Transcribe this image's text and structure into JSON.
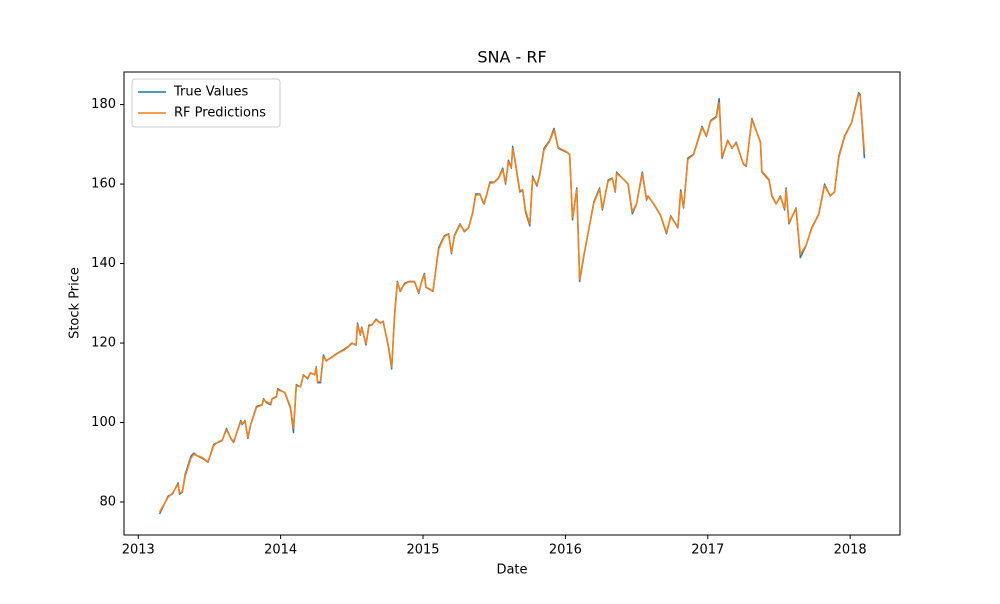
{
  "chart_data": {
    "type": "line",
    "title": "SNA - RF",
    "x_label": "Date",
    "y_label": "Stock Price",
    "x": [
      2013.15,
      2013.21,
      2013.24,
      2013.28,
      2013.29,
      2013.31,
      2013.33,
      2013.37,
      2013.39,
      2013.42,
      2013.45,
      2013.49,
      2013.53,
      2013.56,
      2013.59,
      2013.62,
      2013.65,
      2013.67,
      2013.72,
      2013.73,
      2013.75,
      2013.77,
      2013.79,
      2013.83,
      2013.87,
      2013.88,
      2013.9,
      2013.93,
      2013.94,
      2013.97,
      2013.98,
      2014.03,
      2014.07,
      2014.09,
      2014.11,
      2014.14,
      2014.16,
      2014.19,
      2014.21,
      2014.24,
      2014.25,
      2014.26,
      2014.28,
      2014.3,
      2014.32,
      2014.36,
      2014.4,
      2014.45,
      2014.47,
      2014.5,
      2014.53,
      2014.54,
      2014.56,
      2014.57,
      2014.6,
      2014.62,
      2014.64,
      2014.67,
      2014.7,
      2014.72,
      2014.76,
      2014.78,
      2014.8,
      2014.82,
      2014.84,
      2014.87,
      2014.9,
      2014.94,
      2014.97,
      2014.99,
      2015.01,
      2015.02,
      2015.07,
      2015.11,
      2015.15,
      2015.18,
      2015.2,
      2015.22,
      2015.26,
      2015.29,
      2015.32,
      2015.35,
      2015.37,
      2015.4,
      2015.42,
      2015.43,
      2015.47,
      2015.5,
      2015.53,
      2015.56,
      2015.58,
      2015.6,
      2015.62,
      2015.63,
      2015.65,
      2015.68,
      2015.7,
      2015.72,
      2015.75,
      2015.77,
      2015.8,
      2015.82,
      2015.85,
      2015.89,
      2015.92,
      2015.95,
      2016.01,
      2016.03,
      2016.05,
      2016.08,
      2016.1,
      2016.13,
      2016.2,
      2016.24,
      2016.26,
      2016.3,
      2016.33,
      2016.35,
      2016.36,
      2016.4,
      2016.44,
      2016.47,
      2016.5,
      2016.54,
      2016.57,
      2016.58,
      2016.62,
      2016.67,
      2016.71,
      2016.74,
      2016.79,
      2016.81,
      2016.83,
      2016.86,
      2016.9,
      2016.96,
      2016.99,
      2017.02,
      2017.06,
      2017.08,
      2017.1,
      2017.14,
      2017.17,
      2017.2,
      2017.25,
      2017.27,
      2017.31,
      2017.37,
      2017.38,
      2017.43,
      2017.45,
      2017.48,
      2017.51,
      2017.54,
      2017.55,
      2017.57,
      2017.62,
      2017.65,
      2017.69,
      2017.73,
      2017.78,
      2017.82,
      2017.86,
      2017.89,
      2017.92,
      2017.96,
      2018.01,
      2018.06,
      2018.07,
      2018.1
    ],
    "series": [
      {
        "name": "True Values",
        "color": "#1f77b4",
        "values": [
          77,
          81.5,
          82,
          84.8,
          82,
          82.5,
          87,
          91.5,
          92.3,
          91.5,
          91,
          90,
          94.5,
          95,
          95.5,
          98.5,
          96,
          95,
          100.5,
          99.5,
          100.5,
          96,
          99.5,
          104,
          104.5,
          106,
          105,
          104.5,
          106,
          106.5,
          108.5,
          107.5,
          103.5,
          97.5,
          109.5,
          109,
          112,
          111,
          112.5,
          112,
          114,
          110,
          110,
          117,
          115.5,
          116.5,
          117.5,
          118.5,
          119,
          120,
          119.5,
          125,
          122,
          124,
          119.5,
          124.5,
          124.5,
          126,
          125,
          125.5,
          118.5,
          113.5,
          127,
          135.5,
          133,
          135,
          135.5,
          135.5,
          132.5,
          135.5,
          137.5,
          134,
          133,
          144,
          147,
          147.5,
          142.5,
          147,
          150,
          148,
          149,
          153,
          157.5,
          157.5,
          155.5,
          155,
          160.5,
          160.5,
          161.5,
          164,
          160,
          166,
          164,
          169.5,
          165,
          158,
          158.5,
          153,
          149.5,
          162,
          159.5,
          162.5,
          169,
          171,
          174,
          169,
          168,
          167.5,
          151,
          159,
          135.5,
          142,
          155.5,
          159,
          153.5,
          161,
          161.5,
          158,
          163,
          161.5,
          160,
          152.5,
          155,
          163,
          156,
          157,
          155,
          152,
          147.5,
          152,
          149,
          158.5,
          154,
          166.5,
          167.5,
          174.5,
          172,
          176,
          177,
          181.5,
          166.5,
          171,
          169,
          170.5,
          165,
          164.5,
          176.5,
          170.5,
          163,
          161,
          157,
          155,
          157,
          153.5,
          159,
          150,
          154,
          141.5,
          144.5,
          149,
          152.5,
          160,
          157,
          158,
          167,
          172,
          175.5,
          183,
          182.5,
          166.5
        ]
      },
      {
        "name": "RF Predictions",
        "color": "#ff7f0e",
        "values": [
          77.5,
          81.2,
          82.2,
          84.5,
          82.3,
          82.6,
          86.5,
          91,
          92,
          91.6,
          91.2,
          90.1,
          94.2,
          95.1,
          95.6,
          98.2,
          96.1,
          95.2,
          100.2,
          99.8,
          100.4,
          96.3,
          99.4,
          103.8,
          104.4,
          105.8,
          105.2,
          104.7,
          105.9,
          106.4,
          108.2,
          107.6,
          103.8,
          98.5,
          109.2,
          109.1,
          111.8,
          111.2,
          112.4,
          112.1,
          113.8,
          110.2,
          110.4,
          116.6,
          115.6,
          116.4,
          117.4,
          118.3,
          118.9,
          119.9,
          119.6,
          124.6,
          122.2,
          123.8,
          119.8,
          124.2,
          124.6,
          125.8,
          125.1,
          125.4,
          118.8,
          114,
          126.5,
          135.2,
          133.2,
          134.8,
          135.4,
          135.4,
          132.8,
          135.4,
          137.2,
          134.1,
          133.1,
          143.6,
          146.8,
          147.4,
          142.8,
          146.8,
          149.8,
          148.2,
          149,
          152.8,
          157.2,
          157.4,
          155.7,
          155.2,
          160.2,
          160.4,
          161.4,
          163.6,
          160.3,
          165.6,
          164.2,
          169,
          165.2,
          158.3,
          158.6,
          153.4,
          150,
          161.6,
          159.7,
          162.4,
          168.6,
          170.8,
          173.6,
          169.2,
          168.1,
          167.4,
          151.5,
          158.6,
          136,
          142.2,
          155.2,
          158.7,
          153.8,
          160.7,
          161.4,
          158.2,
          162.7,
          161.5,
          160.1,
          153,
          155.1,
          162.6,
          156.2,
          157,
          155.1,
          152.1,
          147.8,
          151.8,
          149.2,
          158,
          154.3,
          166.2,
          167.4,
          174.2,
          172.1,
          175.8,
          176.8,
          180.5,
          166.8,
          170.8,
          169.1,
          170.3,
          165.1,
          164.7,
          176.2,
          170.6,
          163.2,
          161.2,
          157.2,
          155.1,
          156.8,
          153.8,
          158.6,
          150.3,
          153.8,
          142.3,
          144.6,
          148.8,
          152.4,
          159.6,
          157.1,
          158,
          166.6,
          171.8,
          175.4,
          182.6,
          182.2,
          168
        ]
      }
    ],
    "xlim": [
      2012.9,
      2018.35
    ],
    "xticks": [
      2013,
      2014,
      2015,
      2016,
      2017,
      2018
    ],
    "ylim": [
      71.7,
      188.2
    ],
    "yticks": [
      80,
      100,
      120,
      140,
      160,
      180
    ],
    "grid": false,
    "legend": "upper left"
  }
}
